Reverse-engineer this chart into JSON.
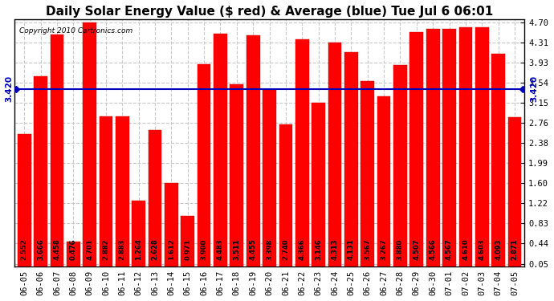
{
  "title": "Daily Solar Energy Value ($ red) & Average (blue) Tue Jul 6 06:01",
  "copyright": "Copyright 2010 Cartronics.com",
  "categories": [
    "06-05",
    "06-06",
    "06-07",
    "06-08",
    "06-09",
    "06-10",
    "06-11",
    "06-12",
    "06-13",
    "06-14",
    "06-15",
    "06-16",
    "06-17",
    "06-18",
    "06-19",
    "06-20",
    "06-21",
    "06-22",
    "06-23",
    "06-24",
    "06-25",
    "06-26",
    "06-27",
    "06-28",
    "06-29",
    "06-30",
    "07-01",
    "07-02",
    "07-03",
    "07-04",
    "07-05"
  ],
  "values": [
    2.552,
    3.666,
    4.458,
    0.476,
    4.701,
    2.882,
    2.883,
    1.264,
    2.628,
    1.612,
    0.971,
    3.9,
    4.483,
    3.511,
    4.455,
    3.398,
    2.74,
    4.366,
    3.146,
    4.313,
    4.131,
    3.567,
    3.267,
    3.88,
    4.507,
    4.566,
    4.567,
    4.61,
    4.603,
    4.093,
    2.871
  ],
  "average": 3.42,
  "bar_color": "#ff0000",
  "avg_line_color": "#0000bb",
  "background_color": "#ffffff",
  "plot_bg_color": "#ffffff",
  "grid_color": "#c8c8c8",
  "title_color": "#000000",
  "border_color": "#000000",
  "ylim_min": 0.0,
  "ylim_max": 4.7,
  "yticks": [
    0.05,
    0.44,
    0.83,
    1.22,
    1.6,
    1.99,
    2.38,
    2.76,
    3.15,
    3.54,
    3.93,
    4.31,
    4.7
  ],
  "title_fontsize": 11,
  "value_fontsize": 6.0,
  "label_fontsize": 7.5,
  "avg_label": "3.420",
  "copyright_fontsize": 6.5
}
